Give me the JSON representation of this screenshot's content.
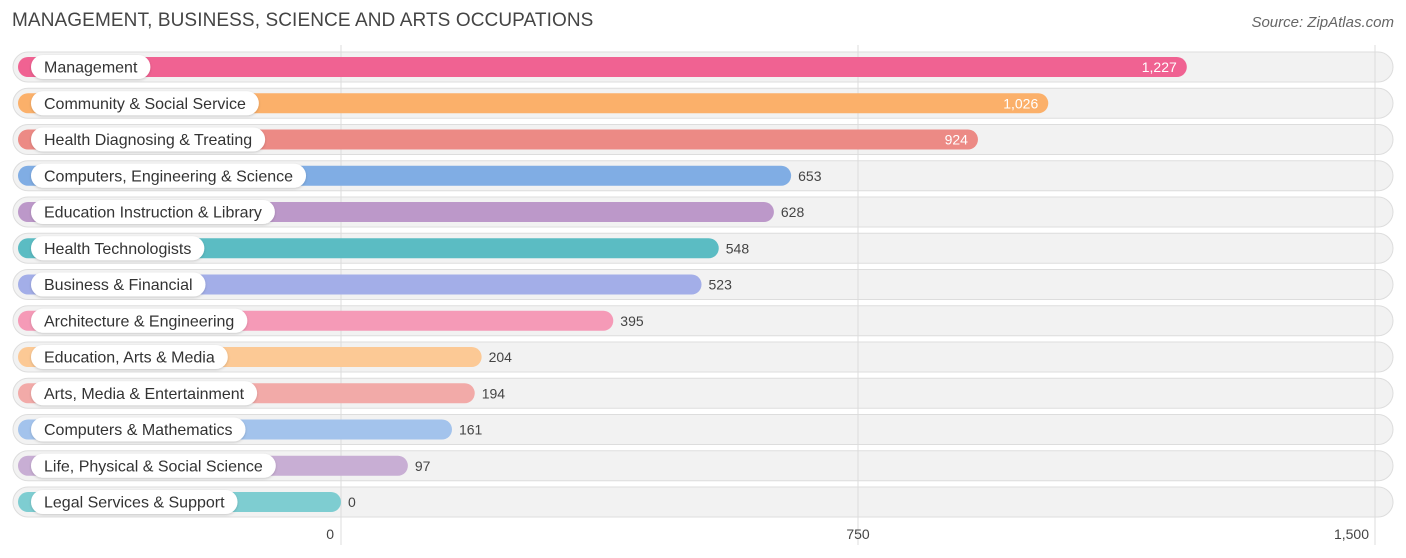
{
  "header": {
    "title": "MANAGEMENT, BUSINESS, SCIENCE AND ARTS OCCUPATIONS",
    "source": "Source: ZipAtlas.com"
  },
  "chart_data": {
    "type": "bar",
    "orientation": "horizontal",
    "title": "MANAGEMENT, BUSINESS, SCIENCE AND ARTS OCCUPATIONS",
    "xlim": [
      0,
      1500
    ],
    "xticks": [
      0,
      750,
      1500
    ],
    "xtick_labels": [
      "0",
      "750",
      "1,500"
    ],
    "grid": true,
    "categories": [
      "Management",
      "Community & Social Service",
      "Health Diagnosing & Treating",
      "Computers, Engineering & Science",
      "Education Instruction & Library",
      "Health Technologists",
      "Business & Financial",
      "Architecture & Engineering",
      "Education, Arts & Media",
      "Arts, Media & Entertainment",
      "Computers & Mathematics",
      "Life, Physical & Social Science",
      "Legal Services & Support"
    ],
    "values": [
      1227,
      1026,
      924,
      653,
      628,
      548,
      523,
      395,
      204,
      194,
      161,
      97,
      0
    ],
    "value_labels": [
      "1,227",
      "1,026",
      "924",
      "653",
      "628",
      "548",
      "523",
      "395",
      "204",
      "194",
      "161",
      "97",
      "0"
    ],
    "colors": [
      "#f06292",
      "#fbb06a",
      "#ec8a85",
      "#80ade4",
      "#bc98c9",
      "#5bbcc3",
      "#a3aee8",
      "#f59ab7",
      "#fcc995",
      "#f2aaa8",
      "#a3c3ec",
      "#c8aed4",
      "#7ecdd1"
    ]
  }
}
